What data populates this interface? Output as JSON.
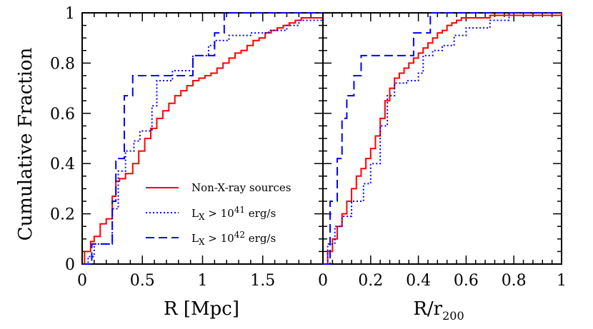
{
  "chart_data": [
    {
      "type": "line",
      "panel": "left",
      "xlabel": "R [Mpc]",
      "ylabel": "Cumulative Fraction",
      "xlim": [
        0,
        2.0
      ],
      "ylim": [
        0,
        1.0
      ],
      "xticks": [
        0,
        0.5,
        1,
        1.5
      ],
      "yticks": [
        0,
        0.2,
        0.4,
        0.6,
        0.8,
        1
      ],
      "step": true,
      "legend_position": "center-right",
      "legend": [
        {
          "label": "Non-X-ray sources",
          "color": "#ff0000",
          "style": "solid"
        },
        {
          "label_base": "L",
          "label_sub": "X",
          "label_mid": " > 10",
          "label_sup": "41",
          "label_tail": " erg/s",
          "color": "#0000ff",
          "style": "dotted"
        },
        {
          "label_base": "L",
          "label_sub": "X",
          "label_mid": " > 10",
          "label_sup": "42",
          "label_tail": " erg/s",
          "color": "#0000ff",
          "style": "dashed"
        }
      ],
      "series": [
        {
          "color": "#ff0000",
          "style": "solid",
          "x": [
            0,
            0.02,
            0.07,
            0.1,
            0.15,
            0.2,
            0.25,
            0.28,
            0.31,
            0.36,
            0.42,
            0.47,
            0.52,
            0.57,
            0.62,
            0.67,
            0.72,
            0.77,
            0.82,
            0.87,
            0.92,
            0.97,
            1.02,
            1.07,
            1.12,
            1.17,
            1.22,
            1.27,
            1.32,
            1.37,
            1.42,
            1.47,
            1.52,
            1.57,
            1.62,
            1.67,
            1.72,
            1.77,
            1.82,
            1.87,
            1.92,
            2.0
          ],
          "y": [
            0,
            0.05,
            0.09,
            0.11,
            0.16,
            0.18,
            0.27,
            0.33,
            0.34,
            0.36,
            0.4,
            0.45,
            0.5,
            0.54,
            0.58,
            0.61,
            0.64,
            0.67,
            0.69,
            0.71,
            0.73,
            0.74,
            0.75,
            0.76,
            0.78,
            0.8,
            0.82,
            0.84,
            0.85,
            0.87,
            0.89,
            0.9,
            0.92,
            0.93,
            0.94,
            0.95,
            0.96,
            0.97,
            0.98,
            0.98,
            0.98,
            0.98
          ]
        },
        {
          "color": "#0000ff",
          "style": "dotted",
          "x": [
            0,
            0.05,
            0.1,
            0.25,
            0.3,
            0.36,
            0.43,
            0.48,
            0.58,
            0.62,
            0.75,
            0.92,
            1.05,
            1.1,
            1.22,
            1.3,
            1.4,
            1.55,
            1.7,
            1.8,
            2.0
          ],
          "y": [
            0,
            0.03,
            0.08,
            0.22,
            0.37,
            0.45,
            0.49,
            0.53,
            0.63,
            0.73,
            0.77,
            0.83,
            0.87,
            0.89,
            0.91,
            0.91,
            0.92,
            0.93,
            0.95,
            0.97,
            0.97
          ]
        },
        {
          "color": "#0000ff",
          "style": "dashed",
          "x": [
            0,
            0.08,
            0.25,
            0.28,
            0.35,
            0.42,
            0.75,
            0.92,
            1.05,
            1.1,
            1.18,
            1.5,
            1.75,
            2.0
          ],
          "y": [
            0,
            0.08,
            0.25,
            0.42,
            0.67,
            0.75,
            0.75,
            0.83,
            0.83,
            0.92,
            1.0,
            1.0,
            1.0,
            1.0
          ]
        }
      ]
    },
    {
      "type": "line",
      "panel": "right",
      "xlabel_base": "R/r",
      "xlabel_sub": "200",
      "xlim": [
        0,
        1.0
      ],
      "ylim": [
        0,
        1.0
      ],
      "xticks": [
        0,
        0.2,
        0.4,
        0.6,
        0.8,
        1
      ],
      "step": true,
      "series": [
        {
          "color": "#ff0000",
          "style": "solid",
          "x": [
            0,
            0.02,
            0.04,
            0.06,
            0.08,
            0.1,
            0.12,
            0.14,
            0.16,
            0.18,
            0.2,
            0.22,
            0.24,
            0.26,
            0.28,
            0.3,
            0.32,
            0.34,
            0.36,
            0.38,
            0.4,
            0.42,
            0.44,
            0.46,
            0.48,
            0.5,
            0.52,
            0.54,
            0.56,
            0.58,
            0.62,
            0.7,
            0.8,
            1.0
          ],
          "y": [
            0,
            0.05,
            0.1,
            0.15,
            0.2,
            0.25,
            0.3,
            0.35,
            0.38,
            0.42,
            0.46,
            0.51,
            0.58,
            0.65,
            0.7,
            0.74,
            0.76,
            0.78,
            0.8,
            0.82,
            0.84,
            0.86,
            0.88,
            0.9,
            0.92,
            0.93,
            0.95,
            0.96,
            0.97,
            0.98,
            0.98,
            0.99,
            0.99,
            1.0
          ]
        },
        {
          "color": "#0000ff",
          "style": "dotted",
          "x": [
            0,
            0.02,
            0.05,
            0.08,
            0.12,
            0.17,
            0.2,
            0.24,
            0.27,
            0.3,
            0.35,
            0.4,
            0.42,
            0.46,
            0.5,
            0.55,
            0.6,
            0.7,
            0.78,
            1.0
          ],
          "y": [
            0,
            0.08,
            0.15,
            0.19,
            0.25,
            0.32,
            0.4,
            0.55,
            0.67,
            0.72,
            0.73,
            0.76,
            0.83,
            0.85,
            0.87,
            0.91,
            0.94,
            0.97,
            1.0,
            1.0
          ]
        },
        {
          "color": "#0000ff",
          "style": "dashed",
          "x": [
            0,
            0.03,
            0.06,
            0.08,
            0.1,
            0.13,
            0.16,
            0.38,
            0.45,
            0.6,
            1.0
          ],
          "y": [
            0,
            0.25,
            0.42,
            0.58,
            0.67,
            0.75,
            0.83,
            0.92,
            1.0,
            1.0,
            1.0
          ]
        }
      ]
    }
  ]
}
